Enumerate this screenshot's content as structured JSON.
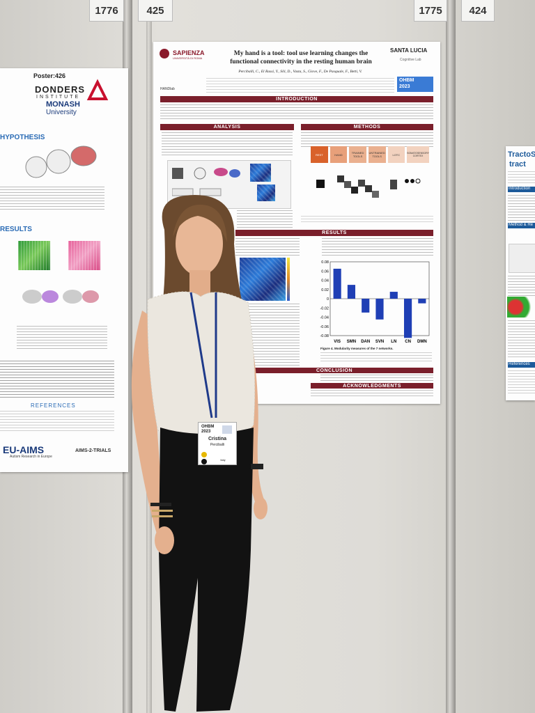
{
  "scene": {
    "booth_numbers": [
      "1776",
      "425",
      "1775",
      "424"
    ]
  },
  "left_poster": {
    "poster_label": "Poster:426",
    "institute_line1": "DONDERS",
    "institute_line2": "INSTITUTE",
    "university_line1": "MONASH",
    "university_line2": "University",
    "section_hypothesis": "HYPOTHESIS",
    "section_results": "RESULTS",
    "section_references": "REFERENCES",
    "footer_logo": "EU-AIMS",
    "footer_logo_sub": "Autism Research in Europe",
    "footer_logo2": "AIMS-2-TRIALS"
  },
  "main_poster": {
    "university": "SAPIENZA",
    "university_sub": "UNIVERSITÀ DI ROMA",
    "title_line1": "My hand is a tool: tool use learning changes the",
    "title_line2": "functional connectivity in the resting human brain",
    "authors": "Perciballi, C., El Rassi, Y., Sili, D., Vasta, S., Giove, F., De Pasquale, F., Betti, V.",
    "partner": "SANTA LUCIA",
    "partner_sub": "Cognitive Lab",
    "lab_logo": "HANDlab",
    "conference_logo_line1": "OHBM",
    "conference_logo_line2": "2023",
    "section_introduction": "INTRODUCTION",
    "section_analysis": "ANALYSIS",
    "section_methods": "METHODS",
    "section_results": "RESULTS",
    "section_conclusion": "CONCLUSION",
    "section_acknowledgements": "ACKNOWLEDGMENTS",
    "methods_boxes": [
      "REST",
      "HAND",
      "TRAINED TOOLS",
      "UNTRAINED TOOLS",
      "LOTC",
      "SOMATOSENSORY CORTEX"
    ],
    "figure_caption": "Figure 4. Modularity measures of the 7 networks.",
    "chart_data": {
      "type": "bar",
      "categories": [
        "VIS",
        "SMN",
        "DAN",
        "SVN",
        "LN",
        "CN",
        "DMN"
      ],
      "values": [
        0.065,
        0.03,
        -0.03,
        -0.045,
        0.015,
        -0.085,
        -0.01
      ],
      "ylim": [
        -0.08,
        0.08
      ],
      "ticks": [
        "0.08",
        "0.06",
        "0.04",
        "0.02",
        "0",
        "-0.02",
        "-0.04",
        "-0.06",
        "-0.08"
      ],
      "bar_color": "#1f3fb5",
      "grid": false
    }
  },
  "right_poster": {
    "title_line1": "TractoS",
    "title_line2": "tract",
    "section_intro": "Introduction",
    "section_method": "Method & Re",
    "section_references": "References"
  },
  "badge": {
    "event_line1": "OHBM",
    "event_line2": "2023",
    "name": "Cristina",
    "surname": "Perciballi",
    "country": "Italy"
  }
}
